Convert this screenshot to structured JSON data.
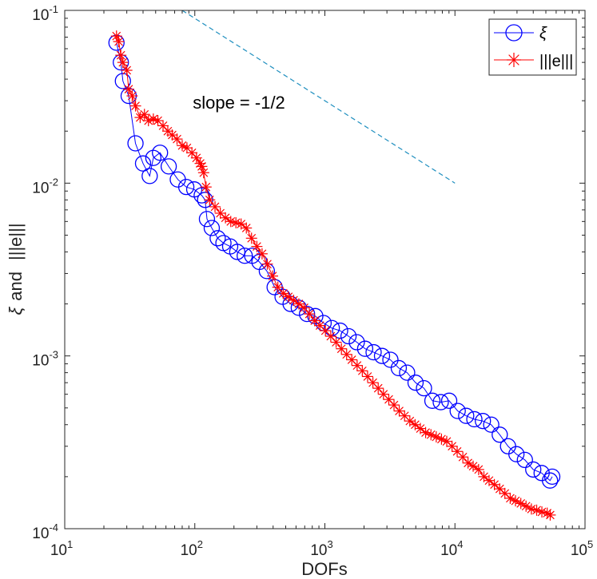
{
  "chart_data": {
    "type": "line",
    "xscale": "log",
    "yscale": "log",
    "xlim": [
      10,
      100000
    ],
    "ylim": [
      0.0001,
      0.1
    ],
    "xlabel": "DOFs",
    "ylabel_parts": [
      "ξ",
      "and",
      "|||e|||"
    ],
    "x_ticks": [
      {
        "base": "10",
        "exp": "1",
        "value": 10
      },
      {
        "base": "10",
        "exp": "2",
        "value": 100
      },
      {
        "base": "10",
        "exp": "3",
        "value": 1000
      },
      {
        "base": "10",
        "exp": "4",
        "value": 10000
      },
      {
        "base": "10",
        "exp": "5",
        "value": 100000
      }
    ],
    "y_ticks": [
      {
        "base": "10",
        "exp": "-4",
        "value": 0.0001
      },
      {
        "base": "10",
        "exp": "-3",
        "value": 0.001
      },
      {
        "base": "10",
        "exp": "-2",
        "value": 0.01
      },
      {
        "base": "10",
        "exp": "-1",
        "value": 0.1
      }
    ],
    "series": [
      {
        "name": "ξ",
        "color": "#0000ff",
        "marker": "circle",
        "x": [
          25,
          27,
          28,
          31,
          35,
          40,
          45,
          48,
          54,
          63,
          74,
          86,
          99,
          113,
          120,
          124,
          135,
          150,
          166,
          187,
          212,
          242,
          276,
          314,
          358,
          411,
          473,
          545,
          630,
          729,
          844,
          978,
          1130,
          1310,
          1520,
          1760,
          2040,
          2370,
          2750,
          3190,
          3700,
          4290,
          4980,
          5780,
          6710,
          7780,
          9030,
          10500,
          12200,
          14100,
          16400,
          19000,
          22100,
          25600,
          29700,
          34500,
          40000,
          46400,
          53800,
          56000
        ],
        "y": [
          0.065,
          0.05,
          0.039,
          0.032,
          0.017,
          0.013,
          0.011,
          0.014,
          0.015,
          0.0125,
          0.0105,
          0.0095,
          0.0092,
          0.0085,
          0.008,
          0.0062,
          0.0055,
          0.0048,
          0.0045,
          0.0043,
          0.004,
          0.0038,
          0.0038,
          0.0035,
          0.0031,
          0.0025,
          0.0022,
          0.002,
          0.0019,
          0.00175,
          0.0017,
          0.00155,
          0.00145,
          0.0014,
          0.0013,
          0.0012,
          0.0011,
          0.00105,
          0.001,
          0.00095,
          0.00085,
          0.0008,
          0.0007,
          0.00065,
          0.00055,
          0.00054,
          0.00055,
          0.00048,
          0.00045,
          0.00043,
          0.00042,
          0.0004,
          0.00035,
          0.0003,
          0.00027,
          0.00025,
          0.00022,
          0.00021,
          0.00019,
          0.0002
        ]
      },
      {
        "name": "|||e|||",
        "color": "#ff0000",
        "marker": "star",
        "x": [
          25,
          26,
          27,
          28,
          30,
          31,
          33,
          35,
          38,
          41,
          44,
          48,
          52,
          57,
          62,
          67,
          73,
          80,
          87,
          95,
          103,
          110,
          113,
          117,
          122,
          130,
          143,
          157,
          172,
          189,
          207,
          227,
          249,
          273,
          300,
          329,
          361,
          396,
          435,
          478,
          524,
          575,
          631,
          693,
          760,
          835,
          916,
          1010,
          1110,
          1220,
          1340,
          1470,
          1610,
          1770,
          1940,
          2130,
          2340,
          2570,
          2820,
          3100,
          3400,
          3730,
          4100,
          4500,
          4940,
          5420,
          5950,
          6540,
          7180,
          7880,
          8650,
          9500,
          10400,
          11500,
          12600,
          13800,
          15200,
          16700,
          18300,
          20100,
          22100,
          24200,
          26600,
          29200,
          32100,
          35200,
          38700,
          42500,
          46600,
          51200,
          54000
        ],
        "y": [
          0.071,
          0.066,
          0.055,
          0.05,
          0.045,
          0.035,
          0.032,
          0.028,
          0.024,
          0.025,
          0.023,
          0.0235,
          0.023,
          0.0215,
          0.02,
          0.019,
          0.018,
          0.0165,
          0.016,
          0.015,
          0.014,
          0.013,
          0.0125,
          0.0115,
          0.0095,
          0.008,
          0.0073,
          0.0067,
          0.0063,
          0.006,
          0.0059,
          0.0058,
          0.0055,
          0.0048,
          0.0043,
          0.0039,
          0.0034,
          0.0029,
          0.0025,
          0.0023,
          0.0022,
          0.0021,
          0.002,
          0.0019,
          0.00175,
          0.0016,
          0.0015,
          0.0014,
          0.0013,
          0.0012,
          0.0011,
          0.00102,
          0.00095,
          0.00088,
          0.00082,
          0.00076,
          0.0007,
          0.00065,
          0.0006,
          0.00056,
          0.00052,
          0.00048,
          0.00045,
          0.00042,
          0.0004,
          0.00038,
          0.00036,
          0.00035,
          0.00034,
          0.00033,
          0.00032,
          0.0003,
          0.00028,
          0.00026,
          0.00024,
          0.00023,
          0.00022,
          0.0002,
          0.00019,
          0.00018,
          0.00017,
          0.00016,
          0.00015,
          0.000145,
          0.00014,
          0.000135,
          0.00013,
          0.000128,
          0.000125,
          0.000123,
          0.00012
        ]
      }
    ],
    "reference_line": {
      "label": "slope = -1/2",
      "color": "#1f8fbf",
      "style": "dashed",
      "x": [
        80,
        10000
      ],
      "y": [
        0.1,
        0.01
      ]
    },
    "annotation": {
      "text": "slope = -1/2",
      "x": 370,
      "y": 0.027
    },
    "legend": {
      "location": "top-right",
      "entries": [
        "ξ",
        "|||e|||"
      ]
    }
  }
}
